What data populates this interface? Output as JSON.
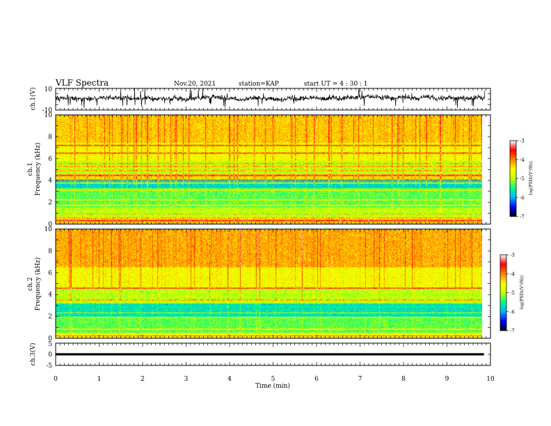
{
  "header": {
    "title": "VLF Spectra",
    "date": "Nov.20, 2021",
    "station": "station=KAP",
    "start": "start  UT =  4 : 30 : 1"
  },
  "chart_data": [
    {
      "type": "line",
      "panel": "ch1-waveform",
      "ylabel": "ch.1(V)",
      "ylim": [
        -10,
        10
      ],
      "ytick_labels": [
        "10",
        "-10"
      ],
      "xlim": [
        0,
        10
      ],
      "color": "#000000",
      "style": "noisy broadband waveform, amplitude mostly within about ±6 V with occasional spikes near ±10 V"
    },
    {
      "type": "heatmap",
      "panel": "ch1-spectrogram",
      "ylabel": [
        "ch.1",
        "Frequency (kHz)"
      ],
      "ylim": [
        0,
        10
      ],
      "ytick_labels": [
        "0",
        "2",
        "4",
        "6",
        "8",
        "10"
      ],
      "xlim": [
        0,
        10
      ],
      "colorbar": {
        "label": "log(PSD)(V²/Hz)",
        "range": [
          -7,
          -3
        ],
        "tick_labels": [
          "-3",
          "-4",
          "-5",
          "-6",
          "-7"
        ],
        "colormap": [
          "#000000",
          "#0000ff",
          "#00b4ff",
          "#00ff80",
          "#c8ff00",
          "#ffff00",
          "#ff8000",
          "#ff0000",
          "#ffffff"
        ]
      },
      "bands": [
        {
          "f_range": [
            0,
            0.6
          ],
          "log_psd": -4.3
        },
        {
          "f_range": [
            0.6,
            1.5
          ],
          "log_psd": -5.0
        },
        {
          "f_range": [
            1.5,
            3.3
          ],
          "log_psd": -5.3
        },
        {
          "f_range": [
            3.3,
            4.0
          ],
          "log_psd": -5.8
        },
        {
          "f_range": [
            4.0,
            4.6
          ],
          "log_psd": -4.4
        },
        {
          "f_range": [
            4.6,
            5.8
          ],
          "log_psd": -5.0
        },
        {
          "f_range": [
            5.8,
            7.5
          ],
          "log_psd": -4.6
        },
        {
          "f_range": [
            7.5,
            10
          ],
          "log_psd": -4.3
        }
      ],
      "narrowband_lines_khz": [
        0.3,
        0.9,
        1.7,
        2.2,
        3.1,
        3.75,
        4.05,
        4.45,
        4.9,
        5.3,
        5.55,
        6.5,
        7.2
      ]
    },
    {
      "type": "heatmap",
      "panel": "ch2-spectrogram",
      "ylabel": [
        "ch.2",
        "Frequency (kHz)"
      ],
      "ylim": [
        0,
        10
      ],
      "ytick_labels": [
        "0",
        "2",
        "4",
        "6",
        "8",
        "10"
      ],
      "xlim": [
        0,
        10
      ],
      "colorbar": {
        "label": "log(PSD)(V²/Hz)",
        "range": [
          -7,
          -3
        ],
        "tick_labels": [
          "-3",
          "-4",
          "-5",
          "-6",
          "-7"
        ],
        "colormap": [
          "#000000",
          "#0000ff",
          "#00b4ff",
          "#00ff80",
          "#c8ff00",
          "#ffff00",
          "#ff8000",
          "#ff0000",
          "#ffffff"
        ]
      },
      "bands": [
        {
          "f_range": [
            0,
            0.5
          ],
          "log_psd": -4.6
        },
        {
          "f_range": [
            0.5,
            1.8
          ],
          "log_psd": -5.3
        },
        {
          "f_range": [
            1.8,
            3.2
          ],
          "log_psd": -5.7
        },
        {
          "f_range": [
            3.2,
            4.5
          ],
          "log_psd": -5.0
        },
        {
          "f_range": [
            4.5,
            6.5
          ],
          "log_psd": -4.6
        },
        {
          "f_range": [
            6.5,
            10
          ],
          "log_psd": -4.2
        }
      ],
      "narrowband_lines_khz": [
        0.2,
        0.8,
        1.9,
        2.3,
        3.5,
        4.6
      ]
    },
    {
      "type": "line",
      "panel": "ch3-waveform",
      "ylabel": "ch.3(V)",
      "ylim": [
        -5,
        5
      ],
      "ytick_labels": [
        "5",
        "0",
        "-5"
      ],
      "xlim": [
        0,
        10
      ],
      "xlabel": "Time (min)",
      "xtick_labels": [
        "0",
        "1",
        "2",
        "3",
        "4",
        "5",
        "6",
        "7",
        "8",
        "9",
        "10"
      ],
      "data_xrange": [
        0,
        9.85
      ],
      "level_range": [
        -0.5,
        0.5
      ],
      "color": "#000000"
    }
  ]
}
